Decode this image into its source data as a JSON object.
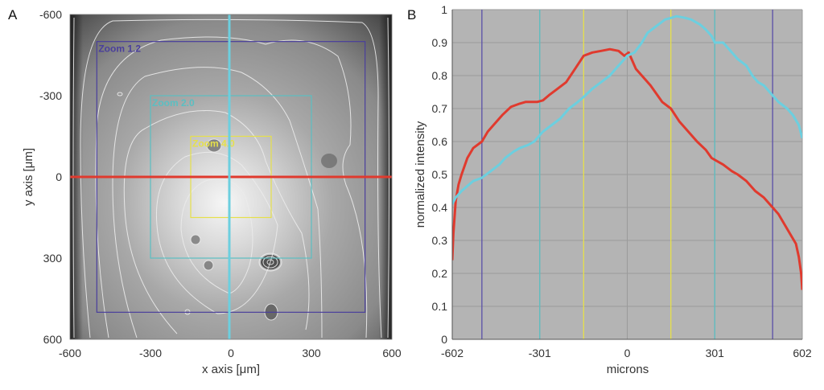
{
  "figure": {
    "panel_a_label": "A",
    "panel_b_label": "B"
  },
  "chart_data": [
    {
      "type": "heatmap",
      "panel": "A",
      "title": "",
      "xlabel": "x axis [μm]",
      "ylabel": "y axis [μm]",
      "xlim": [
        -600,
        600
      ],
      "ylim": [
        -600,
        600
      ],
      "y_inverted": true,
      "xticks": [
        -600,
        -300,
        0,
        300,
        600
      ],
      "yticks": [
        -600,
        -300,
        0,
        300,
        600
      ],
      "xtick_labels": [
        "-600",
        "-300",
        "0",
        "300",
        "600"
      ],
      "ytick_labels": [
        "-600",
        "-300",
        "0",
        "300",
        "600"
      ],
      "colormap": "gray",
      "description": "Grayscale beam intensity image with white iso-intensity contours; brightest near center slightly below origin",
      "zoom_boxes": [
        {
          "label": "Zoom 1.2",
          "x": [
            -500,
            500
          ],
          "y": [
            -500,
            500
          ],
          "color": "#4a3f9c"
        },
        {
          "label": "Zoom 2.0",
          "x": [
            -300,
            300
          ],
          "y": [
            -300,
            300
          ],
          "color": "#5bbfc2"
        },
        {
          "label": "Zoom 4.0",
          "x": [
            -150,
            150
          ],
          "y": [
            -150,
            150
          ],
          "color": "#e6e04a"
        }
      ],
      "profile_lines": [
        {
          "name": "horizontal profile",
          "orientation": "horizontal",
          "y": 0,
          "color": "#e03a2e"
        },
        {
          "name": "vertical profile",
          "orientation": "vertical",
          "x": 0,
          "color": "#6ccfdf"
        }
      ]
    },
    {
      "type": "line",
      "panel": "B",
      "title": "",
      "xlabel": "microns",
      "ylabel": "normalized intensity",
      "xlim": [
        -602,
        602
      ],
      "ylim": [
        0,
        1
      ],
      "grid": true,
      "xticks": [
        -602,
        -301,
        0,
        301,
        602
      ],
      "xtick_labels": [
        "-602",
        "-301",
        "0",
        "301",
        "602"
      ],
      "yticks": [
        0,
        0.1,
        0.2,
        0.3,
        0.4,
        0.5,
        0.6,
        0.7,
        0.8,
        0.9,
        1
      ],
      "ytick_labels": [
        "0",
        "0.1",
        "0.2",
        "0.3",
        "0.4",
        "0.5",
        "0.6",
        "0.7",
        "0.8",
        "0.9",
        "1"
      ],
      "background": "#b4b4b4",
      "vertical_markers": [
        {
          "x": -500,
          "color": "#5a4fa8"
        },
        {
          "x": -301,
          "color": "#5bbfc2"
        },
        {
          "x": -150,
          "color": "#e6e04a"
        },
        {
          "x": 150,
          "color": "#e6e04a"
        },
        {
          "x": 301,
          "color": "#5bbfc2"
        },
        {
          "x": 500,
          "color": "#5a4fa8"
        }
      ],
      "series": [
        {
          "name": "horizontal profile",
          "color": "#e03a2e",
          "x": [
            -602,
            -598,
            -590,
            -580,
            -570,
            -550,
            -530,
            -500,
            -480,
            -460,
            -430,
            -400,
            -370,
            -350,
            -310,
            -290,
            -270,
            -240,
            -210,
            -180,
            -150,
            -120,
            -90,
            -60,
            -30,
            -10,
            5,
            15,
            30,
            50,
            80,
            120,
            150,
            180,
            200,
            240,
            270,
            290,
            330,
            360,
            380,
            410,
            440,
            470,
            490,
            520,
            540,
            560,
            580,
            590,
            598,
            602
          ],
          "y": [
            0.24,
            0.32,
            0.42,
            0.47,
            0.5,
            0.55,
            0.58,
            0.6,
            0.63,
            0.65,
            0.68,
            0.705,
            0.715,
            0.72,
            0.72,
            0.725,
            0.74,
            0.76,
            0.78,
            0.82,
            0.86,
            0.87,
            0.875,
            0.88,
            0.875,
            0.86,
            0.87,
            0.85,
            0.82,
            0.8,
            0.77,
            0.72,
            0.7,
            0.66,
            0.64,
            0.6,
            0.575,
            0.55,
            0.53,
            0.51,
            0.5,
            0.48,
            0.45,
            0.43,
            0.41,
            0.38,
            0.35,
            0.32,
            0.29,
            0.25,
            0.2,
            0.15
          ]
        },
        {
          "name": "vertical profile",
          "color": "#6ccfdf",
          "x": [
            -602,
            -590,
            -570,
            -530,
            -500,
            -470,
            -440,
            -420,
            -390,
            -370,
            -340,
            -320,
            -300,
            -290,
            -260,
            -230,
            -200,
            -170,
            -150,
            -120,
            -90,
            -60,
            -40,
            -20,
            0,
            25,
            50,
            70,
            100,
            130,
            150,
            170,
            200,
            220,
            250,
            270,
            290,
            301,
            330,
            350,
            380,
            410,
            430,
            450,
            470,
            500,
            520,
            550,
            570,
            590,
            602
          ],
          "y": [
            0.41,
            0.43,
            0.45,
            0.48,
            0.49,
            0.51,
            0.53,
            0.55,
            0.57,
            0.58,
            0.59,
            0.6,
            0.62,
            0.63,
            0.65,
            0.67,
            0.7,
            0.72,
            0.735,
            0.76,
            0.78,
            0.8,
            0.82,
            0.84,
            0.86,
            0.87,
            0.9,
            0.93,
            0.95,
            0.97,
            0.975,
            0.98,
            0.975,
            0.97,
            0.955,
            0.94,
            0.92,
            0.9,
            0.9,
            0.88,
            0.85,
            0.83,
            0.8,
            0.78,
            0.77,
            0.74,
            0.72,
            0.7,
            0.68,
            0.65,
            0.61
          ]
        }
      ]
    }
  ]
}
